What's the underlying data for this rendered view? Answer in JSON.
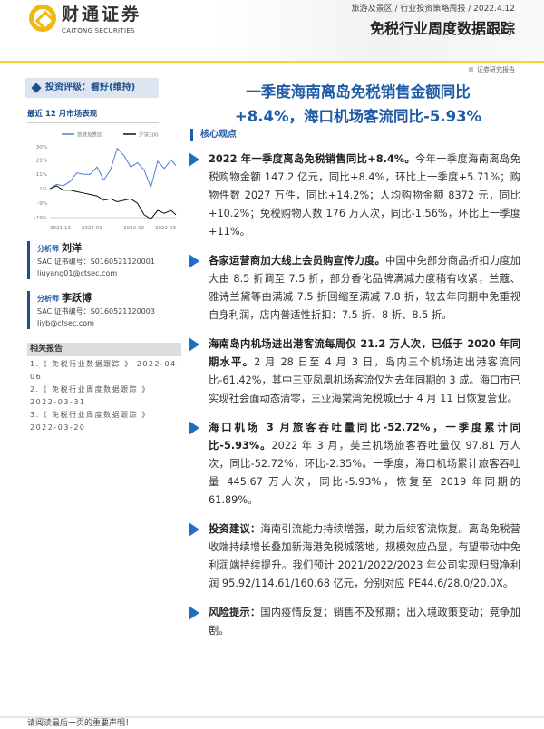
{
  "header": {
    "logo_cn": "财通证券",
    "logo_en": "CAITONG SECURITIES",
    "breadcrumb": "旅游及景区 / 行业投资策略周报 / 2022.4.12",
    "title": "免税行业周度数据跟踪",
    "report_type": "证券研究报告"
  },
  "sidebar": {
    "rating": "投资评级：看好(维持)",
    "perf_title": "最近 12 月市场表现",
    "analysts": [
      {
        "role": "分析师",
        "name": "刘洋",
        "sac": "SAC 证书编号：S0160521120001",
        "email": "liuyang01@ctsec.com"
      },
      {
        "role": "分析师",
        "name": "李跃博",
        "sac": "SAC 证书编号：S0160521120003",
        "email": "liyb@ctsec.com"
      }
    ],
    "related_title": "相关报告",
    "related": [
      {
        "text": "1.《 免税行业数据跟踪 》 2022-04-06"
      },
      {
        "text": "2.《 免税行业周度数据跟踪 》 2022-03-31"
      },
      {
        "text": "3.《 免税行业周度数据跟踪 》 2022-03-20"
      }
    ]
  },
  "chart_data": {
    "type": "line",
    "x": [
      "2021-12-01",
      "2021-12-08",
      "2021-12-15",
      "2021-12-22",
      "2021-12-29",
      "2022-01-05",
      "2022-01-12",
      "2022-01-19",
      "2022-01-26",
      "2022-02-02",
      "2022-02-09",
      "2022-02-16",
      "2022-02-23",
      "2022-03-02",
      "2022-03-09",
      "2022-03-16",
      "2022-03-23",
      "2022-03-30",
      "2022-04-06",
      "2022-04-11"
    ],
    "series": [
      {
        "name": "旅游及景区",
        "color": "#4a7fd4",
        "values": [
          1,
          4,
          3,
          6,
          12,
          11,
          11,
          16,
          7,
          14,
          29,
          24,
          16,
          19,
          14,
          2,
          20,
          15,
          21,
          17
        ]
      },
      {
        "name": "沪深300",
        "color": "#111111",
        "values": [
          1,
          3,
          0,
          0,
          -1,
          -2,
          -3,
          -4,
          -7,
          -6,
          -8,
          -7,
          -6,
          -9,
          -17,
          -20,
          -14,
          -16,
          -14,
          -17
        ]
      }
    ],
    "ytick_labels": [
      "30%",
      "21%",
      "11%",
      "1%",
      "-9%",
      "-19%"
    ],
    "xtick_labels": [
      "2021-12",
      "2022-01",
      "2022-02",
      "2022-03"
    ],
    "ylim": [
      -19,
      30
    ],
    "legend": "top",
    "grid": false
  },
  "main": {
    "title_line1": "一季度海南离岛免税销售金额同比",
    "title_line2": "+8.4%，海口机场客流同比-5.93%",
    "core_title": "核心观点",
    "paragraphs": [
      {
        "lead": "2022 年一季度离岛免税销售同比+8.4%。",
        "text": "今年一季度海南离岛免税购物金额 147.2 亿元，同比+8.4%，环比上一季度+5.71%；购物件数 2027 万件，同比+14.2%；人均购物金额 8372 元，同比+10.2%；免税购物人数 176 万人次，同比-1.56%，环比上一季度+11%。"
      },
      {
        "lead": "各家运营商加大线上会员购宣传力度。",
        "text": "中国中免部分商品折扣力度加大由 8.5 折调至 7.5 折，部分香化品牌满减力度稍有收紧，兰蔻、雅诗兰黛等由满减 7.5 折回缩至满减 7.8 折，较去年同期中免重视自身利润，店内普适性折扣：7.5 折、8 折、8.5 折。"
      },
      {
        "lead": "海南岛内机场进出港客流每周仅 21.2 万人次，已低于 2020 年同期水平。",
        "text": "2 月 28 日至 4 月 3 日，岛内三个机场进出港客流同比-61.42%，其中三亚凤凰机场客流仅为去年同期的 3 成。海口市已实现社会面动态清零，三亚海棠湾免税城已于 4 月 11 日恢复营业。"
      },
      {
        "lead": "海口机场 3 月旅客吞吐量同比-52.72%，一季度累计同比-5.93%。",
        "text": "2022 年 3 月，美兰机场旅客吞吐量仅 97.81 万人次，同比-52.72%，环比-2.35%。一季度，海口机场累计旅客吞吐量 445.67 万人次，同比-5.93%，恢复至 2019 年同期的 61.89%。"
      },
      {
        "lead": "投资建议：",
        "text": "海南引流能力持续增强，助力后续客流恢复。离岛免税营收端持续增长叠加新海港免税城落地，规模效应凸显，有望带动中免利润端持续提升。我们预计 2021/2022/2023 年公司实现归母净利润 95.92/114.61/160.68 亿元，分别对应 PE44.6/28.0/20.0X。"
      },
      {
        "lead": "风险提示：",
        "text": "国内疫情反复；销售不及预期；出入境政策变动；竞争加剧。"
      }
    ]
  },
  "footer": {
    "notice": "请阅读最后一页的重要声明！"
  }
}
